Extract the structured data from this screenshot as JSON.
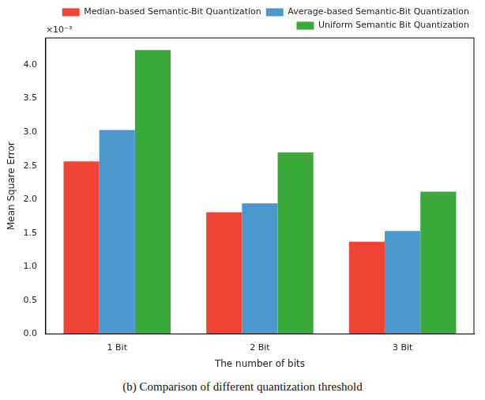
{
  "chart_data": {
    "type": "bar",
    "caption": "(b) Comparison of different quantization threshold",
    "x_label": "The number of bits",
    "y_label": "Mean Square Error",
    "annotation": "×10⁻³",
    "categories": [
      "1 Bit",
      "2 Bit",
      "3 Bit"
    ],
    "series": [
      {
        "name": "Median-based Semantic-Bit Quantization",
        "color": "#f04434",
        "values": [
          0.002565,
          0.00181,
          0.00137
        ]
      },
      {
        "name": "Average-based Semantic-Bit Quantization",
        "color": "#4b98cf",
        "values": [
          0.00303,
          0.00194,
          0.00153
        ]
      },
      {
        "name": "Uniform Semantic Bit Quantization",
        "color": "#3aa93a",
        "values": [
          0.00422,
          0.0027,
          0.002115
        ]
      }
    ],
    "ylim": [
      0,
      0.0044
    ],
    "yticks": [
      {
        "value": 0,
        "label": "0.0"
      },
      {
        "value": 0.0005,
        "label": "0.5"
      },
      {
        "value": 0.001,
        "label": "1.0"
      },
      {
        "value": 0.0015,
        "label": "1.5"
      },
      {
        "value": 0.002,
        "label": "2.0"
      },
      {
        "value": 0.0025,
        "label": "2.5"
      },
      {
        "value": 0.003,
        "label": "3.0"
      },
      {
        "value": 0.0035,
        "label": "3.5"
      },
      {
        "value": 0.004,
        "label": "4.0"
      }
    ],
    "grid": false,
    "legend": "top-right",
    "data_labels": false
  }
}
